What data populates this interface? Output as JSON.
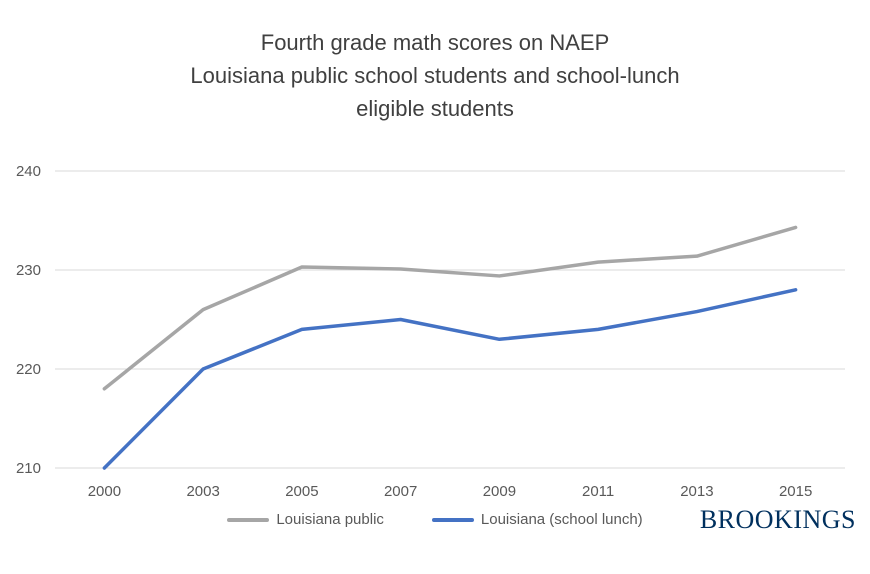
{
  "chart_data": {
    "type": "line",
    "title_lines": [
      "Fourth grade math scores on NAEP",
      "Louisiana public school students and school-lunch",
      "eligible students"
    ],
    "categories": [
      "2000",
      "2003",
      "2005",
      "2007",
      "2009",
      "2011",
      "2013",
      "2015"
    ],
    "series": [
      {
        "name": "Louisiana public",
        "color": "#A6A6A6",
        "values": [
          218,
          226,
          230.3,
          230.1,
          229.4,
          230.8,
          231.4,
          234.3
        ]
      },
      {
        "name": "Louisiana (school lunch)",
        "color": "#4472C4",
        "values": [
          210,
          220,
          224,
          225,
          223,
          224,
          225.8,
          228
        ]
      }
    ],
    "ylim": [
      210,
      240
    ],
    "yticks": [
      240,
      230,
      220,
      210
    ],
    "grid": true,
    "legend_position": "bottom"
  },
  "branding": {
    "logo_text": "BROOKINGS"
  },
  "colors": {
    "gridline": "#D9D9D9",
    "axis_text": "#595959",
    "title_text": "#404040",
    "brand": "#00305E"
  }
}
